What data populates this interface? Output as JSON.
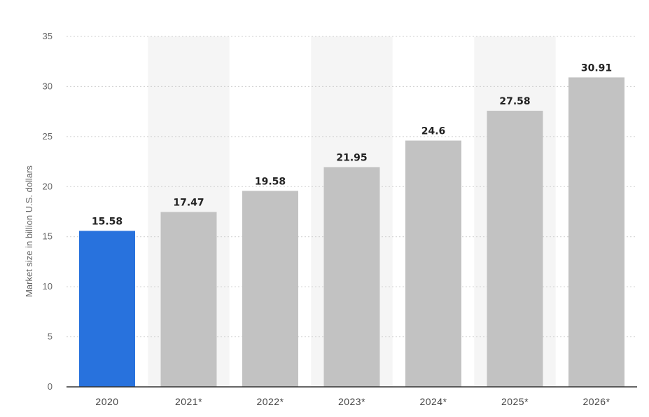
{
  "chart_data": {
    "type": "bar",
    "categories": [
      "2020",
      "2021*",
      "2022*",
      "2023*",
      "2024*",
      "2025*",
      "2026*"
    ],
    "values": [
      15.58,
      17.47,
      19.58,
      21.95,
      24.6,
      27.58,
      30.91
    ],
    "value_labels": [
      "15.58",
      "17.47",
      "19.58",
      "21.95",
      "24.6",
      "27.58",
      "30.91"
    ],
    "title": "",
    "xlabel": "",
    "ylabel": "Market size in billion U.S. dollars",
    "ylim": [
      0,
      35
    ],
    "yticks": [
      0,
      5,
      10,
      15,
      20,
      25,
      30,
      35
    ],
    "grid": true,
    "highlight_index": 0,
    "colors": {
      "highlight": "#2872dd",
      "bar": "#c2c2c2",
      "band": "#f5f5f5",
      "axis": "#333333"
    }
  }
}
